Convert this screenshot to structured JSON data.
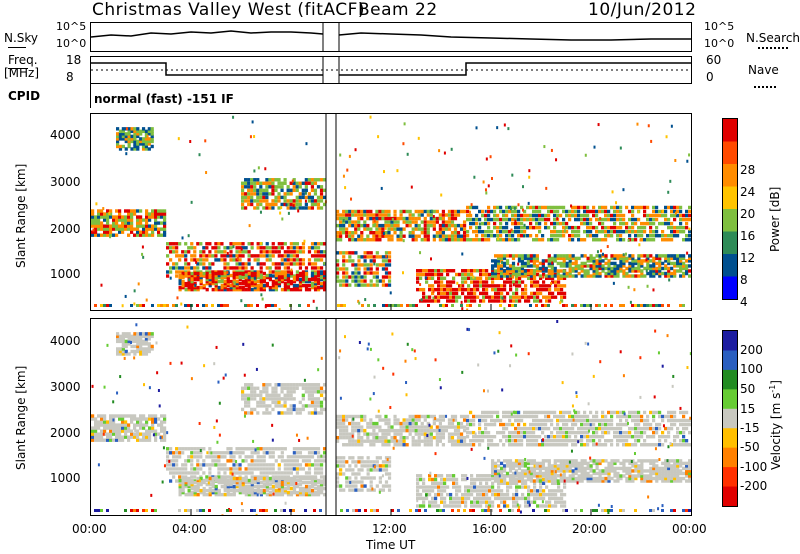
{
  "header": {
    "station": "Christmas Valley West (fitACF)",
    "beam": "Beam 22",
    "date": "10/Jun/2012"
  },
  "top_panels": {
    "nsky_label": "N.Sky",
    "nsearch_label": "N.Search",
    "noise_ticks": [
      "10^5",
      "10^0"
    ],
    "freq_label": "Freq.",
    "freq_unit": "[MHz]",
    "freq_ticks": [
      "18",
      "8"
    ],
    "nave_label": "Nave",
    "nave_ticks": [
      "60",
      "0"
    ],
    "cpid_label": "CPID",
    "cpid_text": "normal (fast) -151 IF"
  },
  "chart_data": [
    {
      "type": "heatmap",
      "panel": "power",
      "ylabel": "Slant Range [km]",
      "y_ticks": [
        "4000",
        "3000",
        "2000",
        "1000"
      ],
      "x_ticks": [
        "00:00",
        "04:00",
        "08:00",
        "12:00",
        "16:00",
        "20:00",
        "00:00"
      ],
      "x_range_hours": [
        0,
        24
      ],
      "y_range_km": [
        180,
        4500
      ],
      "data_gap_hours": [
        9.4,
        9.8
      ],
      "colorbar": {
        "label": "Power [dB]",
        "ticks": [
          "28",
          "24",
          "20",
          "16",
          "12",
          "8",
          "4"
        ],
        "colors": [
          "#e00000",
          "#ff4a00",
          "#ff8c00",
          "#ffc400",
          "#7fbf3f",
          "#2e8b57",
          "#00508f",
          "#0000ff"
        ]
      }
    },
    {
      "type": "heatmap",
      "panel": "velocity",
      "ylabel": "Slant Range [km]",
      "y_ticks": [
        "4000",
        "3000",
        "2000",
        "1000"
      ],
      "x_ticks": [
        "00:00",
        "04:00",
        "08:00",
        "12:00",
        "16:00",
        "20:00",
        "00:00"
      ],
      "xlabel": "Time UT",
      "x_range_hours": [
        0,
        24
      ],
      "y_range_km": [
        180,
        4500
      ],
      "data_gap_hours": [
        9.4,
        9.8
      ],
      "colorbar": {
        "label": "Velocity [m s^-1]",
        "ticks": [
          "200",
          "100",
          "50",
          "15",
          "-15",
          "-50",
          "-100",
          "-200"
        ],
        "colors": [
          "#1c1ca0",
          "#2a5fc0",
          "#228b22",
          "#66cc33",
          "#c8c8c0",
          "#ffbf00",
          "#ff8000",
          "#ff3000",
          "#e00000"
        ]
      }
    }
  ]
}
